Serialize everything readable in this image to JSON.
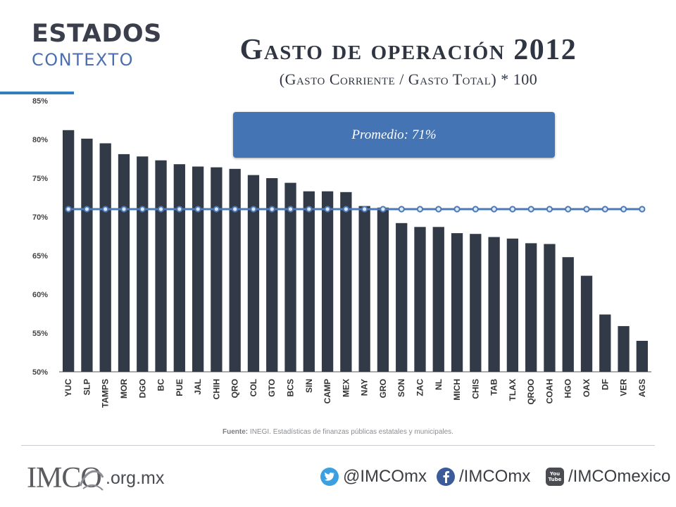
{
  "header": {
    "section_title": "ESTADOS",
    "section_subtitle": "CONTEXTO",
    "title": "Gasto de operación 2012",
    "subtitle": "(Gasto Corriente / Gasto Total) * 100"
  },
  "average_box": {
    "label": "Promedio: 71%"
  },
  "colors": {
    "bar": "#333a47",
    "line": "#4a78b8",
    "accent": "#2f7ec2",
    "box": "#4574b4"
  },
  "chart_data": {
    "type": "bar",
    "categories": [
      "YUC",
      "SLP",
      "TAMPS",
      "MOR",
      "DGO",
      "BC",
      "PUE",
      "JAL",
      "CHIH",
      "QRO",
      "COL",
      "GTO",
      "BCS",
      "SIN",
      "CAMP",
      "MEX",
      "NAY",
      "GRO",
      "SON",
      "ZAC",
      "NL",
      "MICH",
      "CHIS",
      "TAB",
      "TLAX",
      "QROO",
      "COAH",
      "HGO",
      "OAX",
      "DF",
      "VER",
      "AGS"
    ],
    "series": [
      {
        "type": "bar",
        "values": [
          81.2,
          80.1,
          79.5,
          78.1,
          77.8,
          77.3,
          76.8,
          76.5,
          76.4,
          76.2,
          75.4,
          75.0,
          74.4,
          73.3,
          73.3,
          73.2,
          71.4,
          71.2,
          69.2,
          68.7,
          68.7,
          67.9,
          67.8,
          67.4,
          67.2,
          66.6,
          66.5,
          64.8,
          62.4,
          57.4,
          55.9,
          54.0
        ]
      },
      {
        "type": "line",
        "values": [
          71,
          71,
          71,
          71,
          71,
          71,
          71,
          71,
          71,
          71,
          71,
          71,
          71,
          71,
          71,
          71,
          71,
          71,
          71,
          71,
          71,
          71,
          71,
          71,
          71,
          71,
          71,
          71,
          71,
          71,
          71,
          71
        ]
      }
    ],
    "yticks": [
      "50%",
      "55%",
      "60%",
      "65%",
      "70%",
      "75%",
      "80%",
      "85%"
    ],
    "ylim": [
      50,
      85
    ],
    "grid": false,
    "title": "Gasto de operación 2012",
    "annotation": "Promedio: 71%"
  },
  "source": {
    "label": "Fuente:",
    "text": "INEGI.  Estadísticas de finanzas públicas estatales y municipales."
  },
  "footer": {
    "logo_text": "IMCO",
    "domain": ".org.mx",
    "twitter": "@IMCOmx",
    "facebook": "/IMCOmx",
    "youtube": "/IMCOmexico",
    "youtube_badge": "You Tube"
  }
}
